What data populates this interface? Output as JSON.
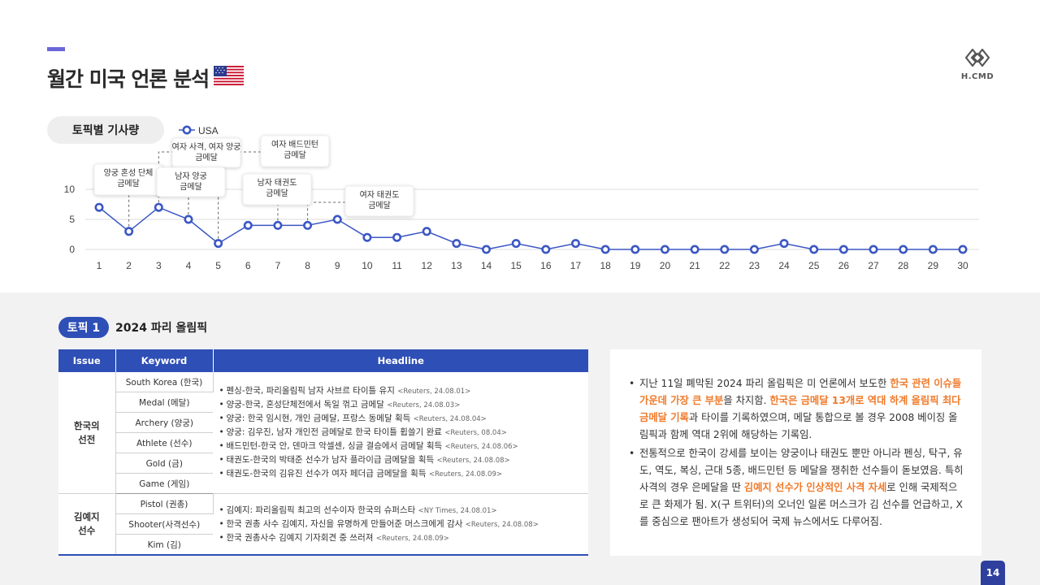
{
  "page": {
    "title": "월간 미국 언론 분석",
    "page_number": "14",
    "logo_text": "H.CMD"
  },
  "chart_section": {
    "label": "토픽별 기사량"
  },
  "chart_data": {
    "type": "line",
    "x": [
      1,
      2,
      3,
      4,
      5,
      6,
      7,
      8,
      9,
      10,
      11,
      12,
      13,
      14,
      15,
      16,
      17,
      18,
      19,
      20,
      21,
      22,
      23,
      24,
      25,
      26,
      27,
      28,
      29,
      30
    ],
    "series": [
      {
        "name": "USA",
        "values": [
          7,
          3,
          7,
          5,
          1,
          4,
          4,
          4,
          5,
          2,
          2,
          3,
          1,
          0,
          1,
          0,
          1,
          0,
          0,
          0,
          0,
          0,
          0,
          1,
          0,
          0,
          0,
          0,
          0,
          0
        ]
      }
    ],
    "yticks": [
      0,
      5,
      10
    ],
    "ylim": [
      0,
      10
    ],
    "grid": true,
    "legend": "top-left",
    "colors": {
      "line": "#3b57c4",
      "grid": "#dcdcdc"
    },
    "annotations": [
      {
        "x": 2,
        "lines": [
          "양궁 혼성 단체",
          "금메달"
        ]
      },
      {
        "x": 3,
        "lines": [
          "여자 사격, 여자 양궁",
          "금메달"
        ]
      },
      {
        "x": 4,
        "lines": [
          "남자 양궁",
          "금메달"
        ]
      },
      {
        "x": 5,
        "lines": [
          "여자 배드민턴",
          "금메달"
        ]
      },
      {
        "x": 7,
        "lines": [
          "남자 태권도",
          "금메달"
        ]
      },
      {
        "x": 8,
        "lines": [
          "여자 태권도",
          "금메달"
        ]
      }
    ]
  },
  "topic": {
    "badge": "토픽 1",
    "title": "2024 파리 올림픽"
  },
  "table": {
    "headers": [
      "Issue",
      "Keyword",
      "Headline"
    ],
    "groups": [
      {
        "issue": [
          "한국의",
          "선전"
        ],
        "keywords": [
          "South Korea (한국)",
          "Medal (메달)",
          "Archery (양궁)",
          "Athlete (선수)",
          "Gold (금)",
          "Game (게임)"
        ],
        "headlines": [
          {
            "text": "펜싱-한국, 파리올림픽 남자 사브르 타이틀 유지",
            "src": "<Reuters, 24.08.01>"
          },
          {
            "text": "양궁-한국, 혼성단체전에서 독일 꺾고 금메달",
            "src": "<Reuters, 24.08.03>"
          },
          {
            "text": "양궁: 한국 임시현, 개인 금메달, 프랑스 동메달 획득",
            "src": "<Reuters, 24.08.04>"
          },
          {
            "text": "양궁: 김우진, 남자 개인전 금메달로 한국 타이틀 휩쓸기 완료",
            "src": "<Reuters, 08.04>"
          },
          {
            "text": "배드민턴-한국 안, 덴마크 악셀센, 싱글 결승에서 금메달 획득",
            "src": "<Reuters, 24.08.06>"
          },
          {
            "text": "태권도-한국의 박태준 선수가 남자 플라이급 금메달을 획득",
            "src": "<Reuters, 24.08.08>"
          },
          {
            "text": "태권도-한국의 김유진 선수가 여자 페더급 금메달을 획득",
            "src": "<Reuters, 24.08.09>"
          }
        ]
      },
      {
        "issue": [
          "김예지",
          "선수"
        ],
        "keywords": [
          "Pistol (권총)",
          "Shooter(사격선수)",
          "Kim (김)"
        ],
        "headlines": [
          {
            "text": "김예지: 파리올림픽 최고의 선수이자 한국의 슈퍼스타",
            "src": "<NY Times, 24.08.01>"
          },
          {
            "text": "한국 권총 사수 김예지, 자신을 유명하게 만들어준 머스크에게 감사",
            "src": "<Reuters, 24.08.08>"
          },
          {
            "text": "한국 권총사수 김예지 기자회견 중 쓰러져",
            "src": "<Reuters, 24.08.09>"
          }
        ]
      }
    ]
  },
  "summary": {
    "p1": {
      "a": "지난 11일 폐막된 2024 파리 올림픽은 미 언론에서 보도한 ",
      "b": "한국 관련 이슈들 가운데 가장 큰 부분",
      "c": "을 차지함. ",
      "d": "한국은 금메달 13개로 역대 하계 올림픽 최다 금메달 기록",
      "e": "과 타이를 기록하였으며, 메달 통합으로 볼 경우 2008 베이징 올림픽과 함께 역대 2위에 해당하는 기록임."
    },
    "p2": {
      "a": "전통적으로 한국이 강세를 보이는 양궁이나 태권도 뿐만 아니라 펜싱, 탁구, 유도, 역도, 복싱, 근대 5종, 배드민턴 등 메달을 쟁취한 선수들이 돋보였음. 특히 사격의 경우 은메달을 딴 ",
      "b": "김예지 선수가 인상적인 사격 자세",
      "c": "로 인해 국제적으로 큰 화제가 됨. X(구 트위터)의 오너인 일론 머스크가 김 선수를 언급하고, X를 중심으로 팬아트가 생성되어 국제 뉴스에서도 다루어짐."
    }
  }
}
